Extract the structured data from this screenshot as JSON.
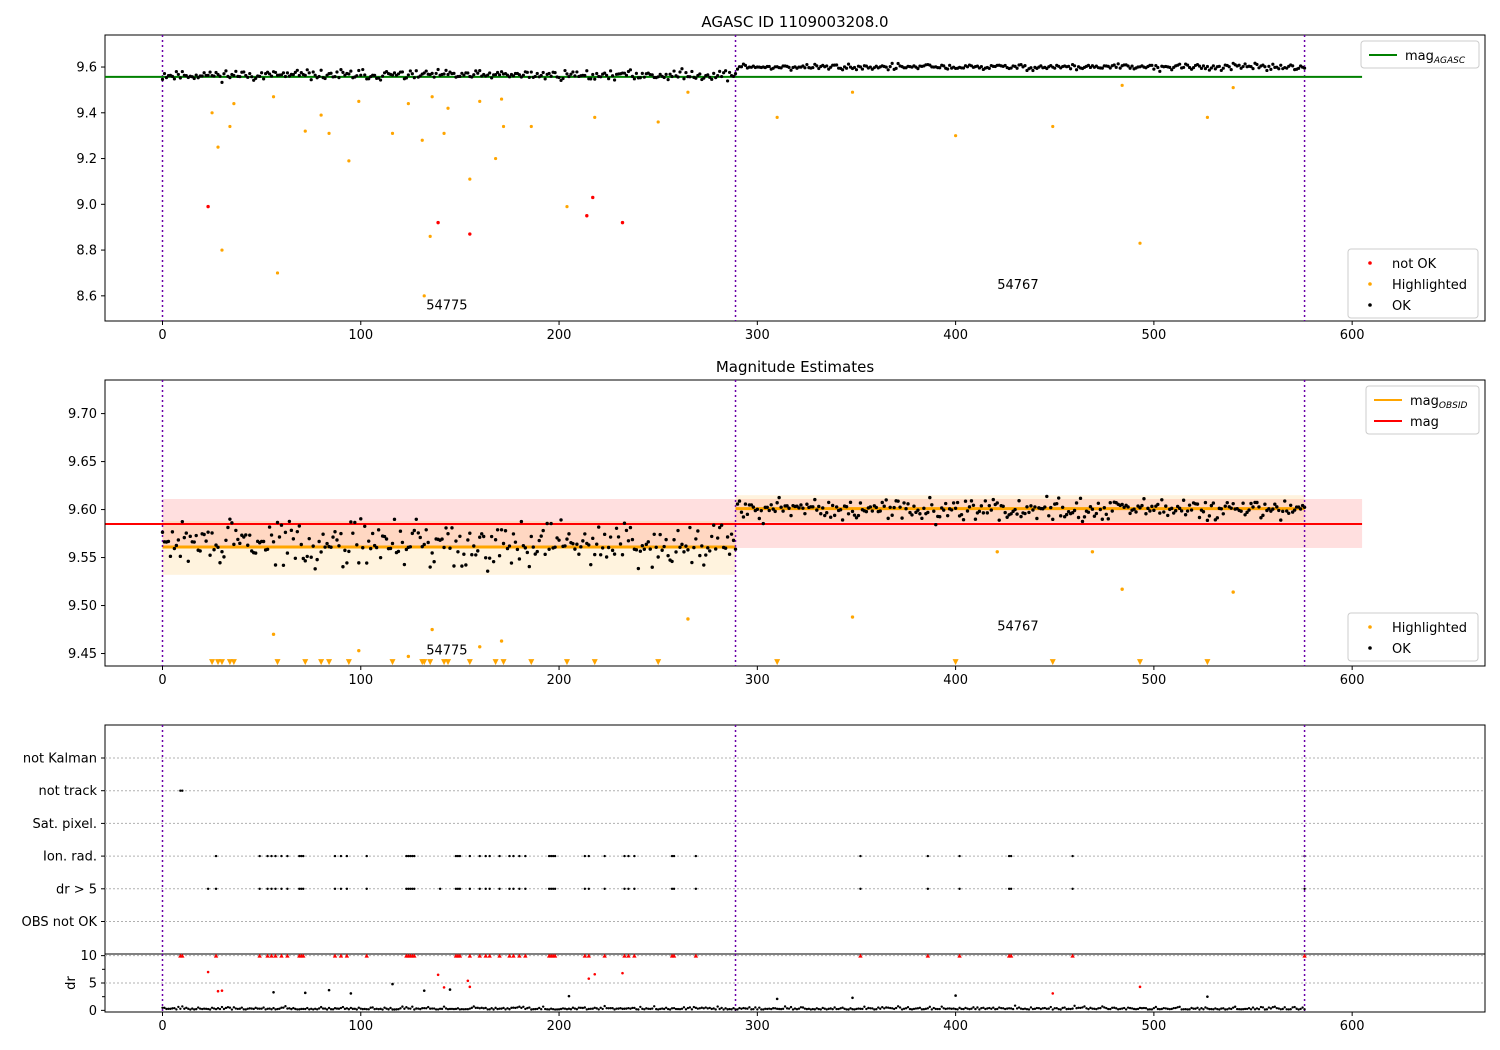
{
  "chart_data": [
    {
      "type": "scatter",
      "title": "AGASC ID 1109003208.0",
      "xlim": [
        -29,
        667
      ],
      "ylim": [
        8.49,
        9.74
      ],
      "xticks": [
        0,
        100,
        200,
        300,
        400,
        500,
        600
      ],
      "yticks": [
        8.6,
        8.8,
        9.0,
        9.2,
        9.4,
        9.6
      ],
      "ytick_labels": [
        "8.6",
        "8.8",
        "9.0",
        "9.2",
        "9.4",
        "9.6"
      ],
      "grid": false,
      "vlines": [
        0,
        289,
        576
      ],
      "hline": {
        "y": 9.557,
        "x0": -29,
        "x1": 605,
        "color": "#008000"
      },
      "legend_upper": {
        "placement": "upper-right",
        "entries": [
          {
            "label": "mag",
            "sub": "AGASC",
            "kind": "line",
            "color": "#008000"
          }
        ]
      },
      "legend_lower": {
        "placement": "lower-right",
        "entries": [
          {
            "label": "not OK",
            "kind": "dot",
            "color": "#ff0000"
          },
          {
            "label": "Highlighted",
            "kind": "dot",
            "color": "#ffa500"
          },
          {
            "label": "OK",
            "kind": "dot",
            "color": "#000000"
          }
        ]
      },
      "annotations": [
        {
          "text": "54775",
          "x": 133,
          "y": 8.54
        },
        {
          "text": "54767",
          "x": 421,
          "y": 8.63
        }
      ],
      "segments_ok": [
        {
          "x0": 0,
          "x1": 289,
          "mean": 9.565,
          "spread": 0.02
        },
        {
          "x0": 290,
          "x1": 576,
          "mean": 9.6,
          "spread": 0.013
        }
      ],
      "not_ok_points": [
        [
          23,
          8.99
        ],
        [
          139,
          8.92
        ],
        [
          155,
          8.87
        ],
        [
          214,
          8.95
        ],
        [
          217,
          9.03
        ],
        [
          232,
          8.92
        ]
      ],
      "highlighted_points": [
        [
          25,
          9.4
        ],
        [
          28,
          9.25
        ],
        [
          30,
          8.8
        ],
        [
          34,
          9.34
        ],
        [
          36,
          9.44
        ],
        [
          56,
          9.47
        ],
        [
          58,
          8.7
        ],
        [
          72,
          9.32
        ],
        [
          80,
          9.39
        ],
        [
          84,
          9.31
        ],
        [
          94,
          9.19
        ],
        [
          99,
          9.45
        ],
        [
          116,
          9.31
        ],
        [
          124,
          9.44
        ],
        [
          131,
          9.28
        ],
        [
          132,
          8.6
        ],
        [
          135,
          8.86
        ],
        [
          136,
          9.47
        ],
        [
          142,
          9.31
        ],
        [
          144,
          9.42
        ],
        [
          155,
          9.11
        ],
        [
          160,
          9.45
        ],
        [
          168,
          9.2
        ],
        [
          171,
          9.46
        ],
        [
          172,
          9.34
        ],
        [
          186,
          9.34
        ],
        [
          204,
          8.99
        ],
        [
          218,
          9.38
        ],
        [
          250,
          9.36
        ],
        [
          265,
          9.49
        ],
        [
          310,
          9.38
        ],
        [
          348,
          9.49
        ],
        [
          400,
          9.3
        ],
        [
          449,
          9.34
        ],
        [
          484,
          9.52
        ],
        [
          493,
          8.83
        ],
        [
          527,
          9.38
        ],
        [
          540,
          9.51
        ]
      ]
    },
    {
      "type": "scatter",
      "title": "Magnitude Estimates",
      "xlim": [
        -29,
        667
      ],
      "ylim": [
        9.437,
        9.735
      ],
      "xticks": [
        0,
        100,
        200,
        300,
        400,
        500,
        600
      ],
      "yticks": [
        9.45,
        9.5,
        9.55,
        9.6,
        9.65,
        9.7
      ],
      "ytick_labels": [
        "9.45",
        "9.50",
        "9.55",
        "9.60",
        "9.65",
        "9.70"
      ],
      "grid": false,
      "vlines": [
        0,
        289,
        576
      ],
      "mag_line": {
        "y": 9.585,
        "band": [
          9.56,
          9.611
        ],
        "x0": -29,
        "x1": 605,
        "color": "#ff0000",
        "band_color": "#ffdcdc"
      },
      "obsid_segments": [
        {
          "x0": 0,
          "x1": 289,
          "y": 9.561,
          "band": [
            9.532,
            9.588
          ]
        },
        {
          "x0": 289,
          "x1": 576,
          "y": 9.601,
          "band": [
            9.587,
            9.615
          ]
        }
      ],
      "legend_upper": {
        "placement": "upper-right",
        "entries": [
          {
            "label": "mag",
            "sub": "OBSID",
            "kind": "line",
            "color": "#ffa500"
          },
          {
            "label": "mag",
            "kind": "line",
            "color": "#ff0000"
          }
        ]
      },
      "legend_lower": {
        "placement": "lower-right",
        "entries": [
          {
            "label": "Highlighted",
            "kind": "dot",
            "color": "#ffa500"
          },
          {
            "label": "OK",
            "kind": "dot",
            "color": "#000000"
          }
        ]
      },
      "annotations": [
        {
          "text": "54775",
          "x": 133,
          "y": 9.449
        },
        {
          "text": "54767",
          "x": 421,
          "y": 9.474
        }
      ],
      "highlighted_points": [
        [
          56,
          9.47
        ],
        [
          99,
          9.453
        ],
        [
          124,
          9.447
        ],
        [
          136,
          9.475
        ],
        [
          160,
          9.457
        ],
        [
          171,
          9.463
        ],
        [
          265,
          9.486
        ],
        [
          348,
          9.488
        ],
        [
          421,
          9.556
        ],
        [
          469,
          9.556
        ],
        [
          484,
          9.517
        ],
        [
          540,
          9.514
        ]
      ],
      "clipped_marker_x": [
        25,
        28,
        30,
        34,
        36,
        58,
        72,
        80,
        84,
        94,
        116,
        131,
        132,
        135,
        142,
        144,
        155,
        168,
        172,
        186,
        204,
        218,
        250,
        310,
        400,
        449,
        493,
        527
      ],
      "clipped_marker_y": 9.441,
      "scatter_segments": [
        {
          "x0": 0,
          "x1": 289,
          "mean": 9.565,
          "spread": 0.022
        },
        {
          "x0": 290,
          "x1": 576,
          "mean": 9.6,
          "spread": 0.011
        }
      ]
    },
    {
      "type": "scatter",
      "title": "",
      "xlim": [
        -29,
        667
      ],
      "flag_rows": [
        "not Kalman",
        "not track",
        "Sat. pixel.",
        "Ion. rad.",
        "dr > 5",
        "OBS not OK"
      ],
      "flags": {
        "not track": [
          9,
          10
        ],
        "Ion. rad.": [
          27,
          49,
          53,
          55,
          57,
          60,
          63,
          69,
          70,
          71,
          87,
          90,
          93,
          103,
          123,
          124,
          125,
          126,
          127,
          148,
          149,
          150,
          155,
          160,
          163,
          165,
          170,
          175,
          177,
          180,
          183,
          195,
          196,
          197,
          198,
          213,
          215,
          223,
          233,
          235,
          238,
          257,
          258,
          269,
          352,
          386,
          402,
          427,
          428,
          459,
          576
        ],
        "dr > 5": [
          23,
          27,
          49,
          53,
          55,
          57,
          60,
          63,
          69,
          70,
          71,
          87,
          90,
          93,
          103,
          123,
          124,
          125,
          126,
          127,
          140,
          148,
          149,
          150,
          155,
          160,
          163,
          165,
          170,
          175,
          177,
          180,
          183,
          195,
          196,
          197,
          198,
          213,
          215,
          223,
          233,
          235,
          238,
          257,
          258,
          269,
          352,
          386,
          402,
          427,
          428,
          459,
          576
        ]
      },
      "vlines": [
        0,
        289,
        576
      ]
    },
    {
      "type": "scatter",
      "title": "",
      "ylabel": "dr",
      "xlim": [
        -29,
        667
      ],
      "ylim": [
        -0.3,
        10.3
      ],
      "xticks": [
        0,
        100,
        200,
        300,
        400,
        500,
        600
      ],
      "yticks": [
        0,
        5,
        10
      ],
      "ytick_labels": [
        "0",
        "5",
        "10"
      ],
      "grid": true,
      "vlines": [
        0,
        289,
        576
      ],
      "capped_red_x": [
        9,
        10,
        27,
        49,
        53,
        55,
        57,
        60,
        63,
        69,
        70,
        71,
        87,
        90,
        93,
        103,
        123,
        124,
        125,
        126,
        127,
        148,
        149,
        150,
        155,
        160,
        163,
        165,
        170,
        175,
        177,
        180,
        183,
        195,
        196,
        197,
        198,
        213,
        215,
        223,
        233,
        235,
        238,
        257,
        258,
        269,
        352,
        386,
        402,
        427,
        428,
        459,
        576
      ],
      "red_points": [
        [
          23,
          7
        ],
        [
          28,
          3.5
        ],
        [
          30,
          3.6
        ],
        [
          139,
          6.5
        ],
        [
          142,
          4.2
        ],
        [
          154,
          5.4
        ],
        [
          155,
          4.3
        ],
        [
          215,
          5.8
        ],
        [
          218,
          6.6
        ],
        [
          232,
          6.8
        ],
        [
          449,
          3.1
        ],
        [
          493,
          4.3
        ]
      ],
      "black_outliers": [
        [
          56,
          3.3
        ],
        [
          72,
          3.2
        ],
        [
          84,
          3.7
        ],
        [
          95,
          3.1
        ],
        [
          116,
          4.8
        ],
        [
          132,
          3.6
        ],
        [
          145,
          3.8
        ],
        [
          205,
          2.6
        ],
        [
          310,
          2.1
        ],
        [
          348,
          2.3
        ],
        [
          400,
          2.7
        ],
        [
          527,
          2.5
        ]
      ],
      "baseline": {
        "x0": 0,
        "x1": 576,
        "max": 1.2
      }
    }
  ]
}
